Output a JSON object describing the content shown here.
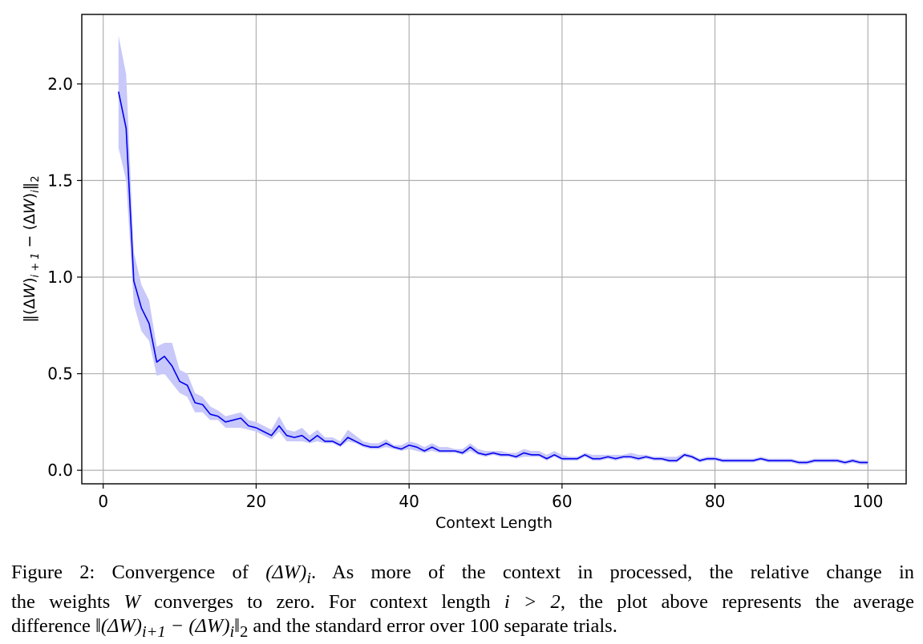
{
  "chart_data": {
    "type": "line",
    "title": "",
    "xlabel": "Context Length",
    "ylabel": "‖(ΔW)i+1 − (ΔW)i‖2",
    "ylabel_parts": {
      "open": "‖(Δ",
      "w1": "W",
      "close1": ")",
      "sub1": "i + 1",
      "minus": " − (Δ",
      "w2": "W",
      "close2": ")",
      "sub2": "i",
      "norm": "‖",
      "sub3": "2"
    },
    "xlim": [
      -2.8,
      105
    ],
    "ylim": [
      -0.07,
      2.36
    ],
    "xticks": [
      0,
      20,
      40,
      60,
      80,
      100
    ],
    "xtick_labels": [
      "0",
      "20",
      "40",
      "60",
      "80",
      "100"
    ],
    "yticks": [
      0.0,
      0.5,
      1.0,
      1.5,
      2.0
    ],
    "ytick_labels": [
      "0.0",
      "0.5",
      "1.0",
      "1.5",
      "2.0"
    ],
    "grid": true,
    "line_color": "#0000ee",
    "band_color": "#c8c8fa",
    "series": [
      {
        "name": "mean difference",
        "x": [
          2,
          3,
          4,
          5,
          6,
          7,
          8,
          9,
          10,
          11,
          12,
          13,
          14,
          15,
          16,
          17,
          18,
          19,
          20,
          21,
          22,
          23,
          24,
          25,
          26,
          27,
          28,
          29,
          30,
          31,
          32,
          33,
          34,
          35,
          36,
          37,
          38,
          39,
          40,
          41,
          42,
          43,
          44,
          45,
          46,
          47,
          48,
          49,
          50,
          51,
          52,
          53,
          54,
          55,
          56,
          57,
          58,
          59,
          60,
          61,
          62,
          63,
          64,
          65,
          66,
          67,
          68,
          69,
          70,
          71,
          72,
          73,
          74,
          75,
          76,
          77,
          78,
          79,
          80,
          81,
          82,
          83,
          84,
          85,
          86,
          87,
          88,
          89,
          90,
          91,
          92,
          93,
          94,
          95,
          96,
          97,
          98,
          99,
          100
        ],
        "mean": [
          1.96,
          1.77,
          0.98,
          0.84,
          0.76,
          0.56,
          0.59,
          0.54,
          0.46,
          0.44,
          0.35,
          0.34,
          0.29,
          0.28,
          0.25,
          0.26,
          0.27,
          0.23,
          0.22,
          0.2,
          0.18,
          0.23,
          0.18,
          0.17,
          0.18,
          0.15,
          0.18,
          0.15,
          0.15,
          0.13,
          0.17,
          0.15,
          0.13,
          0.12,
          0.12,
          0.14,
          0.12,
          0.11,
          0.13,
          0.12,
          0.1,
          0.12,
          0.1,
          0.1,
          0.1,
          0.09,
          0.12,
          0.09,
          0.08,
          0.09,
          0.08,
          0.08,
          0.07,
          0.09,
          0.08,
          0.08,
          0.06,
          0.08,
          0.06,
          0.06,
          0.06,
          0.08,
          0.06,
          0.06,
          0.07,
          0.06,
          0.07,
          0.07,
          0.06,
          0.07,
          0.06,
          0.06,
          0.05,
          0.05,
          0.08,
          0.07,
          0.05,
          0.06,
          0.06,
          0.05,
          0.05,
          0.05,
          0.05,
          0.05,
          0.06,
          0.05,
          0.05,
          0.05,
          0.05,
          0.04,
          0.04,
          0.05,
          0.05,
          0.05,
          0.05,
          0.04,
          0.05,
          0.04,
          0.04
        ],
        "lower": [
          1.67,
          1.5,
          0.86,
          0.72,
          0.67,
          0.49,
          0.5,
          0.45,
          0.4,
          0.38,
          0.3,
          0.3,
          0.26,
          0.26,
          0.22,
          0.22,
          0.22,
          0.21,
          0.2,
          0.18,
          0.16,
          0.2,
          0.15,
          0.15,
          0.15,
          0.14,
          0.15,
          0.14,
          0.14,
          0.12,
          0.15,
          0.14,
          0.12,
          0.11,
          0.11,
          0.12,
          0.11,
          0.1,
          0.11,
          0.1,
          0.09,
          0.1,
          0.09,
          0.09,
          0.09,
          0.08,
          0.1,
          0.08,
          0.07,
          0.08,
          0.07,
          0.07,
          0.06,
          0.07,
          0.07,
          0.07,
          0.05,
          0.07,
          0.05,
          0.05,
          0.05,
          0.07,
          0.05,
          0.05,
          0.06,
          0.05,
          0.06,
          0.06,
          0.05,
          0.06,
          0.05,
          0.05,
          0.04,
          0.04,
          0.07,
          0.06,
          0.04,
          0.05,
          0.05,
          0.04,
          0.04,
          0.04,
          0.04,
          0.04,
          0.05,
          0.04,
          0.04,
          0.04,
          0.04,
          0.03,
          0.03,
          0.04,
          0.04,
          0.04,
          0.04,
          0.03,
          0.04,
          0.03,
          0.03
        ],
        "upper": [
          2.25,
          2.05,
          1.13,
          0.96,
          0.88,
          0.64,
          0.66,
          0.66,
          0.52,
          0.5,
          0.4,
          0.38,
          0.33,
          0.31,
          0.28,
          0.29,
          0.3,
          0.26,
          0.25,
          0.23,
          0.21,
          0.28,
          0.21,
          0.2,
          0.22,
          0.18,
          0.21,
          0.17,
          0.17,
          0.15,
          0.21,
          0.18,
          0.15,
          0.14,
          0.14,
          0.16,
          0.13,
          0.13,
          0.15,
          0.14,
          0.12,
          0.14,
          0.12,
          0.12,
          0.11,
          0.11,
          0.14,
          0.11,
          0.1,
          0.1,
          0.1,
          0.09,
          0.09,
          0.11,
          0.1,
          0.1,
          0.08,
          0.1,
          0.08,
          0.07,
          0.07,
          0.09,
          0.08,
          0.08,
          0.08,
          0.08,
          0.08,
          0.09,
          0.08,
          0.08,
          0.07,
          0.07,
          0.07,
          0.07,
          0.09,
          0.08,
          0.06,
          0.07,
          0.07,
          0.06,
          0.06,
          0.06,
          0.06,
          0.06,
          0.07,
          0.06,
          0.06,
          0.06,
          0.06,
          0.05,
          0.05,
          0.06,
          0.06,
          0.06,
          0.06,
          0.05,
          0.06,
          0.05,
          0.05
        ]
      }
    ]
  },
  "caption": {
    "line1_a": "Figure 2: Convergence of ",
    "line1_math": "(ΔW)",
    "line1_math_sub": "i",
    "line1_b": ".  As more of the context in processed, the relative change in",
    "line2_a": "the weights ",
    "line2_math": "W",
    "line2_b": " converges to zero. For context length ",
    "line2_math2": "i > 2",
    "line2_c": ", the plot above represents the average",
    "line3_a": "difference ",
    "line3_math_a": "‖(ΔW)",
    "line3_sub_a": "i+1",
    "line3_math_b": " − (ΔW)",
    "line3_sub_b": "i",
    "line3_math_c": "‖",
    "line3_sub_c": "2",
    "line3_b": " and the standard error over 100 separate trials."
  }
}
